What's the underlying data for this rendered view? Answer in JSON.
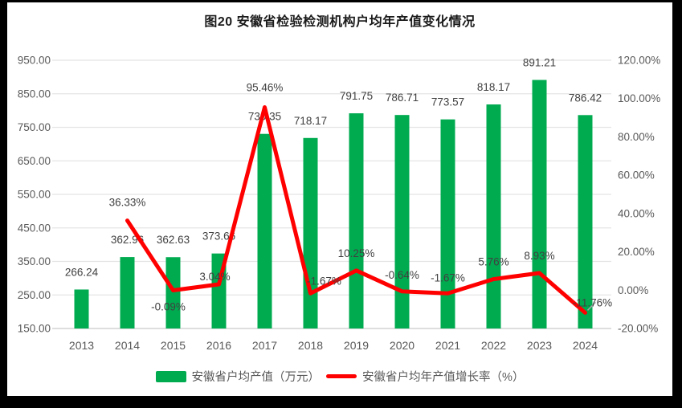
{
  "window": {
    "frame_color": "#000000",
    "panel_color": "#ffffff"
  },
  "chart_data": {
    "type": "bar",
    "combo": "bar+line",
    "title": "图20 安徽省检验检测机构户均年产值变化情况",
    "categories": [
      "2013",
      "2014",
      "2015",
      "2016",
      "2017",
      "2018",
      "2019",
      "2020",
      "2021",
      "2022",
      "2023",
      "2024"
    ],
    "series": [
      {
        "name": "安徽省户均产值（万元）",
        "type": "bar",
        "axis": "left",
        "color": "#00AB50",
        "values": [
          266.24,
          362.96,
          362.63,
          373.66,
          730.35,
          718.17,
          791.75,
          786.71,
          773.57,
          818.17,
          891.21,
          786.42
        ],
        "labels": [
          "266.24",
          "362.96",
          "362.63",
          "373.66",
          "730.35",
          "718.17",
          "791.75",
          "786.71",
          "773.57",
          "818.17",
          "891.21",
          "786.42"
        ]
      },
      {
        "name": "安徽省户均年产值增长率（%）",
        "type": "line",
        "axis": "right",
        "color": "#FF0000",
        "values": [
          null,
          36.33,
          -0.09,
          3.04,
          95.46,
          -1.67,
          10.25,
          -0.64,
          -1.67,
          5.76,
          8.93,
          -11.76
        ],
        "labels": [
          null,
          "36.33%",
          "-0.09%",
          "3.04%",
          "95.46%",
          "-1.67%",
          "10.25%",
          "-0.64%",
          "-1.67%",
          "5.76%",
          "8.93%",
          "-11.76%"
        ],
        "label_offsets": [
          null,
          [
            0,
            -23
          ],
          [
            -6,
            20
          ],
          [
            -5,
            -10
          ],
          [
            0,
            -25
          ],
          [
            17,
            -16
          ],
          [
            0,
            -22
          ],
          [
            0,
            -21
          ],
          [
            0,
            -20
          ],
          [
            0,
            -22
          ],
          [
            0,
            -22
          ],
          [
            9,
            -13
          ]
        ],
        "last_point_leader_line": true
      }
    ],
    "left_axis": {
      "min": 150,
      "max": 950,
      "step": 100,
      "ticks": [
        "950.00",
        "850.00",
        "750.00",
        "650.00",
        "550.00",
        "450.00",
        "350.00",
        "250.00",
        "150.00"
      ]
    },
    "right_axis": {
      "min": -20,
      "max": 120,
      "step": 20,
      "ticks": [
        "120.00%",
        "100.00%",
        "80.00%",
        "60.00%",
        "40.00%",
        "20.00%",
        "0.00%",
        "-20.00%"
      ]
    },
    "grid": true,
    "legend_position": "bottom",
    "colors": {
      "bar": "#00AB50",
      "line": "#FF0000",
      "gridline": "#E4E4E4",
      "axis_line": "#C9C9C9",
      "axis_text": "#595959",
      "data_label": "#404040",
      "leader_line": "#A6A6A6"
    }
  }
}
